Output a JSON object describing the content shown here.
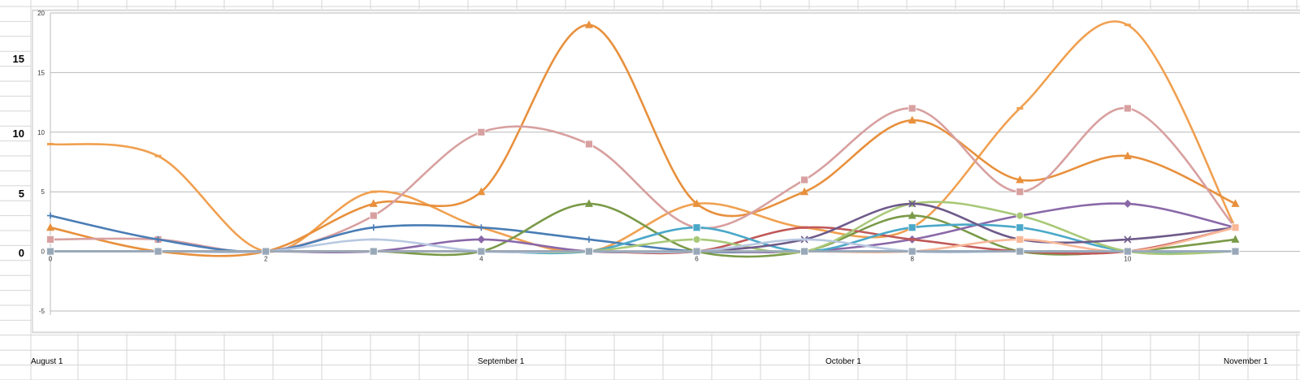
{
  "sheet": {
    "left_axis_labels": [
      "15",
      "10",
      "5",
      "0"
    ],
    "month_labels": [
      "August 1",
      "September 1",
      "October 1",
      "November 1"
    ]
  },
  "chart_data": {
    "type": "line",
    "title": "",
    "xlabel": "",
    "ylabel": "",
    "x": [
      0,
      1,
      2,
      3,
      4,
      5,
      6,
      7,
      8,
      9,
      10,
      11
    ],
    "xlim": [
      0,
      11.6
    ],
    "ylim": [
      -5,
      20
    ],
    "x_ticks": [
      "0",
      "2",
      "4",
      "6",
      "8",
      "10"
    ],
    "y_ticks": [
      "-5",
      "0",
      "5",
      "10",
      "15",
      "20"
    ],
    "grid": "horizontal",
    "legend": "none",
    "smooth": true,
    "series": [
      {
        "color": "#f0a050",
        "marker": "dash",
        "values": [
          9,
          8,
          0,
          5,
          2,
          0,
          4,
          2,
          2,
          12,
          19,
          2
        ]
      },
      {
        "color": "#e8903c",
        "marker": "triangle",
        "values": [
          2,
          0,
          0,
          4,
          5,
          19,
          4,
          5,
          11,
          6,
          8,
          4
        ]
      },
      {
        "color": "#d8a0a0",
        "marker": "square",
        "values": [
          1,
          1,
          0,
          3,
          10,
          9,
          2,
          6,
          12,
          5,
          12,
          2
        ]
      },
      {
        "color": "#4a7db5",
        "marker": "plus",
        "values": [
          3,
          1,
          0,
          2,
          2,
          1,
          0,
          0,
          0,
          0,
          0,
          0
        ]
      },
      {
        "color": "#7a9a48",
        "marker": "triangle",
        "values": [
          0,
          0,
          0,
          0,
          0,
          4,
          0,
          0,
          3,
          0,
          0,
          1
        ]
      },
      {
        "color": "#8a68a8",
        "marker": "diamond",
        "values": [
          0,
          0,
          0,
          0,
          1,
          0,
          0,
          0,
          1,
          3,
          4,
          2
        ]
      },
      {
        "color": "#c05858",
        "marker": "dash",
        "values": [
          0,
          0,
          0,
          0,
          0,
          0,
          0,
          2,
          1,
          0,
          0,
          2
        ]
      },
      {
        "color": "#4aa8c8",
        "marker": "square",
        "values": [
          0,
          0,
          0,
          0,
          0,
          0,
          2,
          0,
          2,
          2,
          0,
          0
        ]
      },
      {
        "color": "#a8c878",
        "marker": "circle",
        "values": [
          0,
          0,
          0,
          0,
          0,
          0,
          1,
          0,
          4,
          3,
          0,
          0
        ]
      },
      {
        "color": "#6e5a8a",
        "marker": "x",
        "values": [
          0,
          0,
          0,
          0,
          0,
          0,
          0,
          1,
          4,
          1,
          1,
          2
        ]
      },
      {
        "color": "#f8b898",
        "marker": "square",
        "values": [
          0,
          0,
          0,
          0,
          0,
          0,
          0,
          0,
          0,
          1,
          0,
          2
        ]
      },
      {
        "color": "#b8c8e0",
        "marker": "dash",
        "values": [
          0,
          0,
          0,
          1,
          0,
          0,
          0,
          1,
          0,
          0,
          0,
          0
        ]
      },
      {
        "color": "#98a8b8",
        "marker": "square",
        "values": [
          0,
          0,
          0,
          0,
          0,
          0,
          0,
          0,
          0,
          0,
          0,
          0
        ]
      }
    ]
  }
}
